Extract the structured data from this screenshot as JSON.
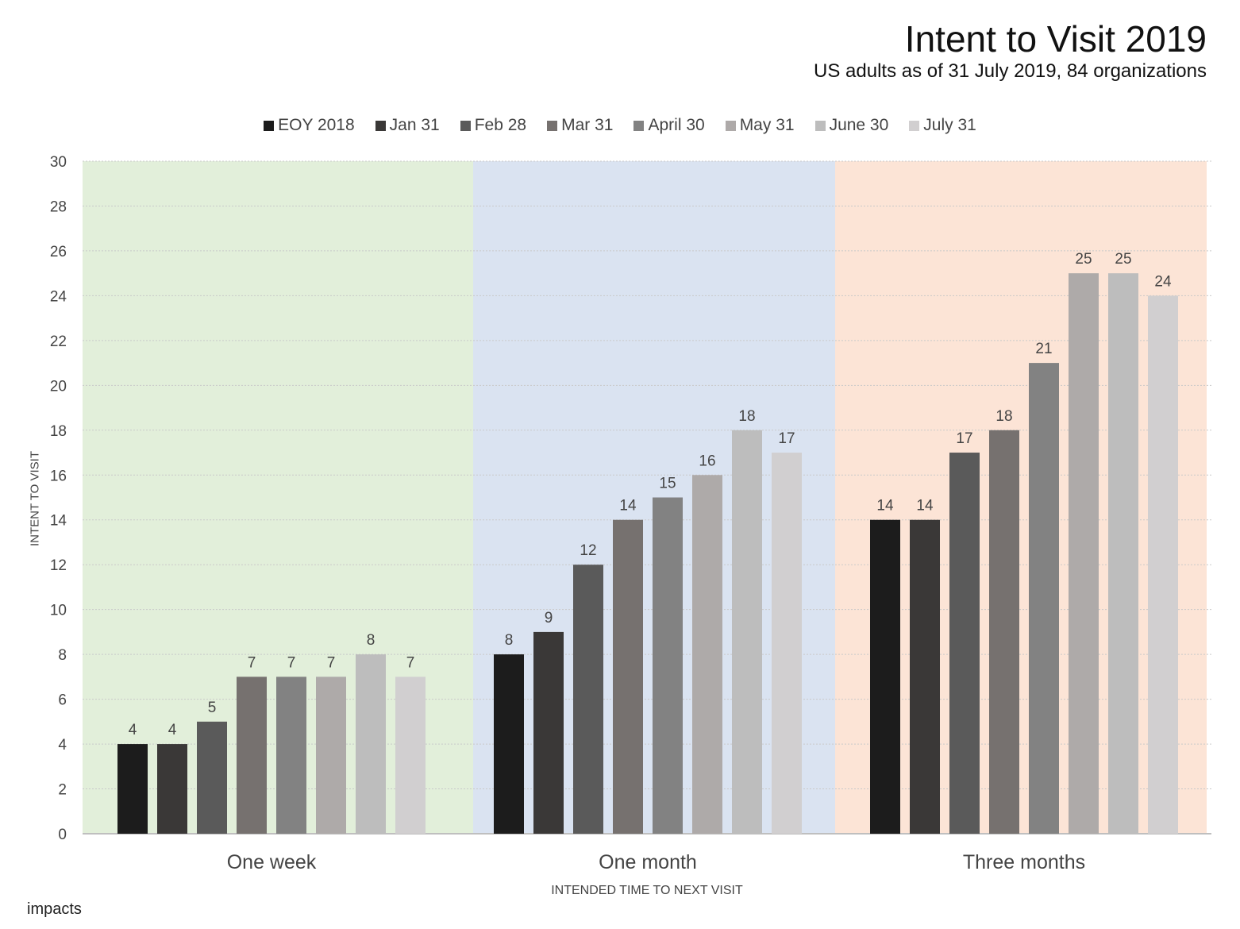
{
  "title": "Intent to Visit 2019",
  "subtitle": "US adults as of 31 July 2019, 84 organizations",
  "logo_text": "impacts",
  "chart_data": {
    "type": "bar",
    "categories": [
      "One week",
      "One month",
      "Three months"
    ],
    "series": [
      {
        "name": "EOY 2018",
        "color": "#1c1c1c",
        "values": [
          4,
          8,
          14
        ]
      },
      {
        "name": "Jan 31",
        "color": "#3a3837",
        "values": [
          4,
          9,
          14
        ]
      },
      {
        "name": "Feb 28",
        "color": "#5a5a5a",
        "values": [
          5,
          12,
          17
        ]
      },
      {
        "name": "Mar 31",
        "color": "#76716f",
        "values": [
          7,
          14,
          18
        ]
      },
      {
        "name": "April 30",
        "color": "#828282",
        "values": [
          7,
          15,
          21
        ]
      },
      {
        "name": "May 31",
        "color": "#aeaaa9",
        "values": [
          7,
          16,
          25
        ]
      },
      {
        "name": "June 30",
        "color": "#bdbdbd",
        "values": [
          8,
          18,
          25
        ]
      },
      {
        "name": "July 31",
        "color": "#d1cfd0",
        "values": [
          7,
          17,
          24
        ]
      }
    ],
    "category_backgrounds": [
      "#e2efda",
      "#dae3f1",
      "#fce4d6"
    ],
    "xlabel": "INTENDED TIME TO NEXT VISIT",
    "ylabel": "INTENT TO VISIT",
    "ylim": [
      0,
      30
    ],
    "yticks": [
      0,
      2,
      4,
      6,
      8,
      10,
      12,
      14,
      16,
      18,
      20,
      22,
      24,
      26,
      28,
      30
    ],
    "grid": true,
    "legend_position": "top"
  }
}
